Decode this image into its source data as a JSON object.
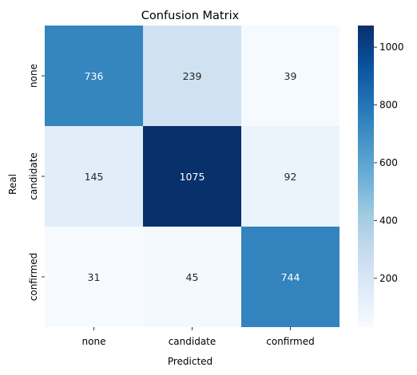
{
  "chart_data": {
    "type": "heatmap",
    "title": "Confusion Matrix",
    "xlabel": "Predicted",
    "ylabel": "Real",
    "x_categories": [
      "none",
      "candidate",
      "confirmed"
    ],
    "y_categories": [
      "none",
      "candidate",
      "confirmed"
    ],
    "values": [
      [
        736,
        239,
        39
      ],
      [
        145,
        1075,
        92
      ],
      [
        31,
        45,
        744
      ]
    ],
    "colormap": "Blues",
    "colorbar": {
      "range": [
        31,
        1075
      ],
      "ticks": [
        200,
        400,
        600,
        800,
        1000
      ],
      "tick_labels": [
        "200",
        "400",
        "600",
        "800",
        "1000"
      ]
    }
  }
}
